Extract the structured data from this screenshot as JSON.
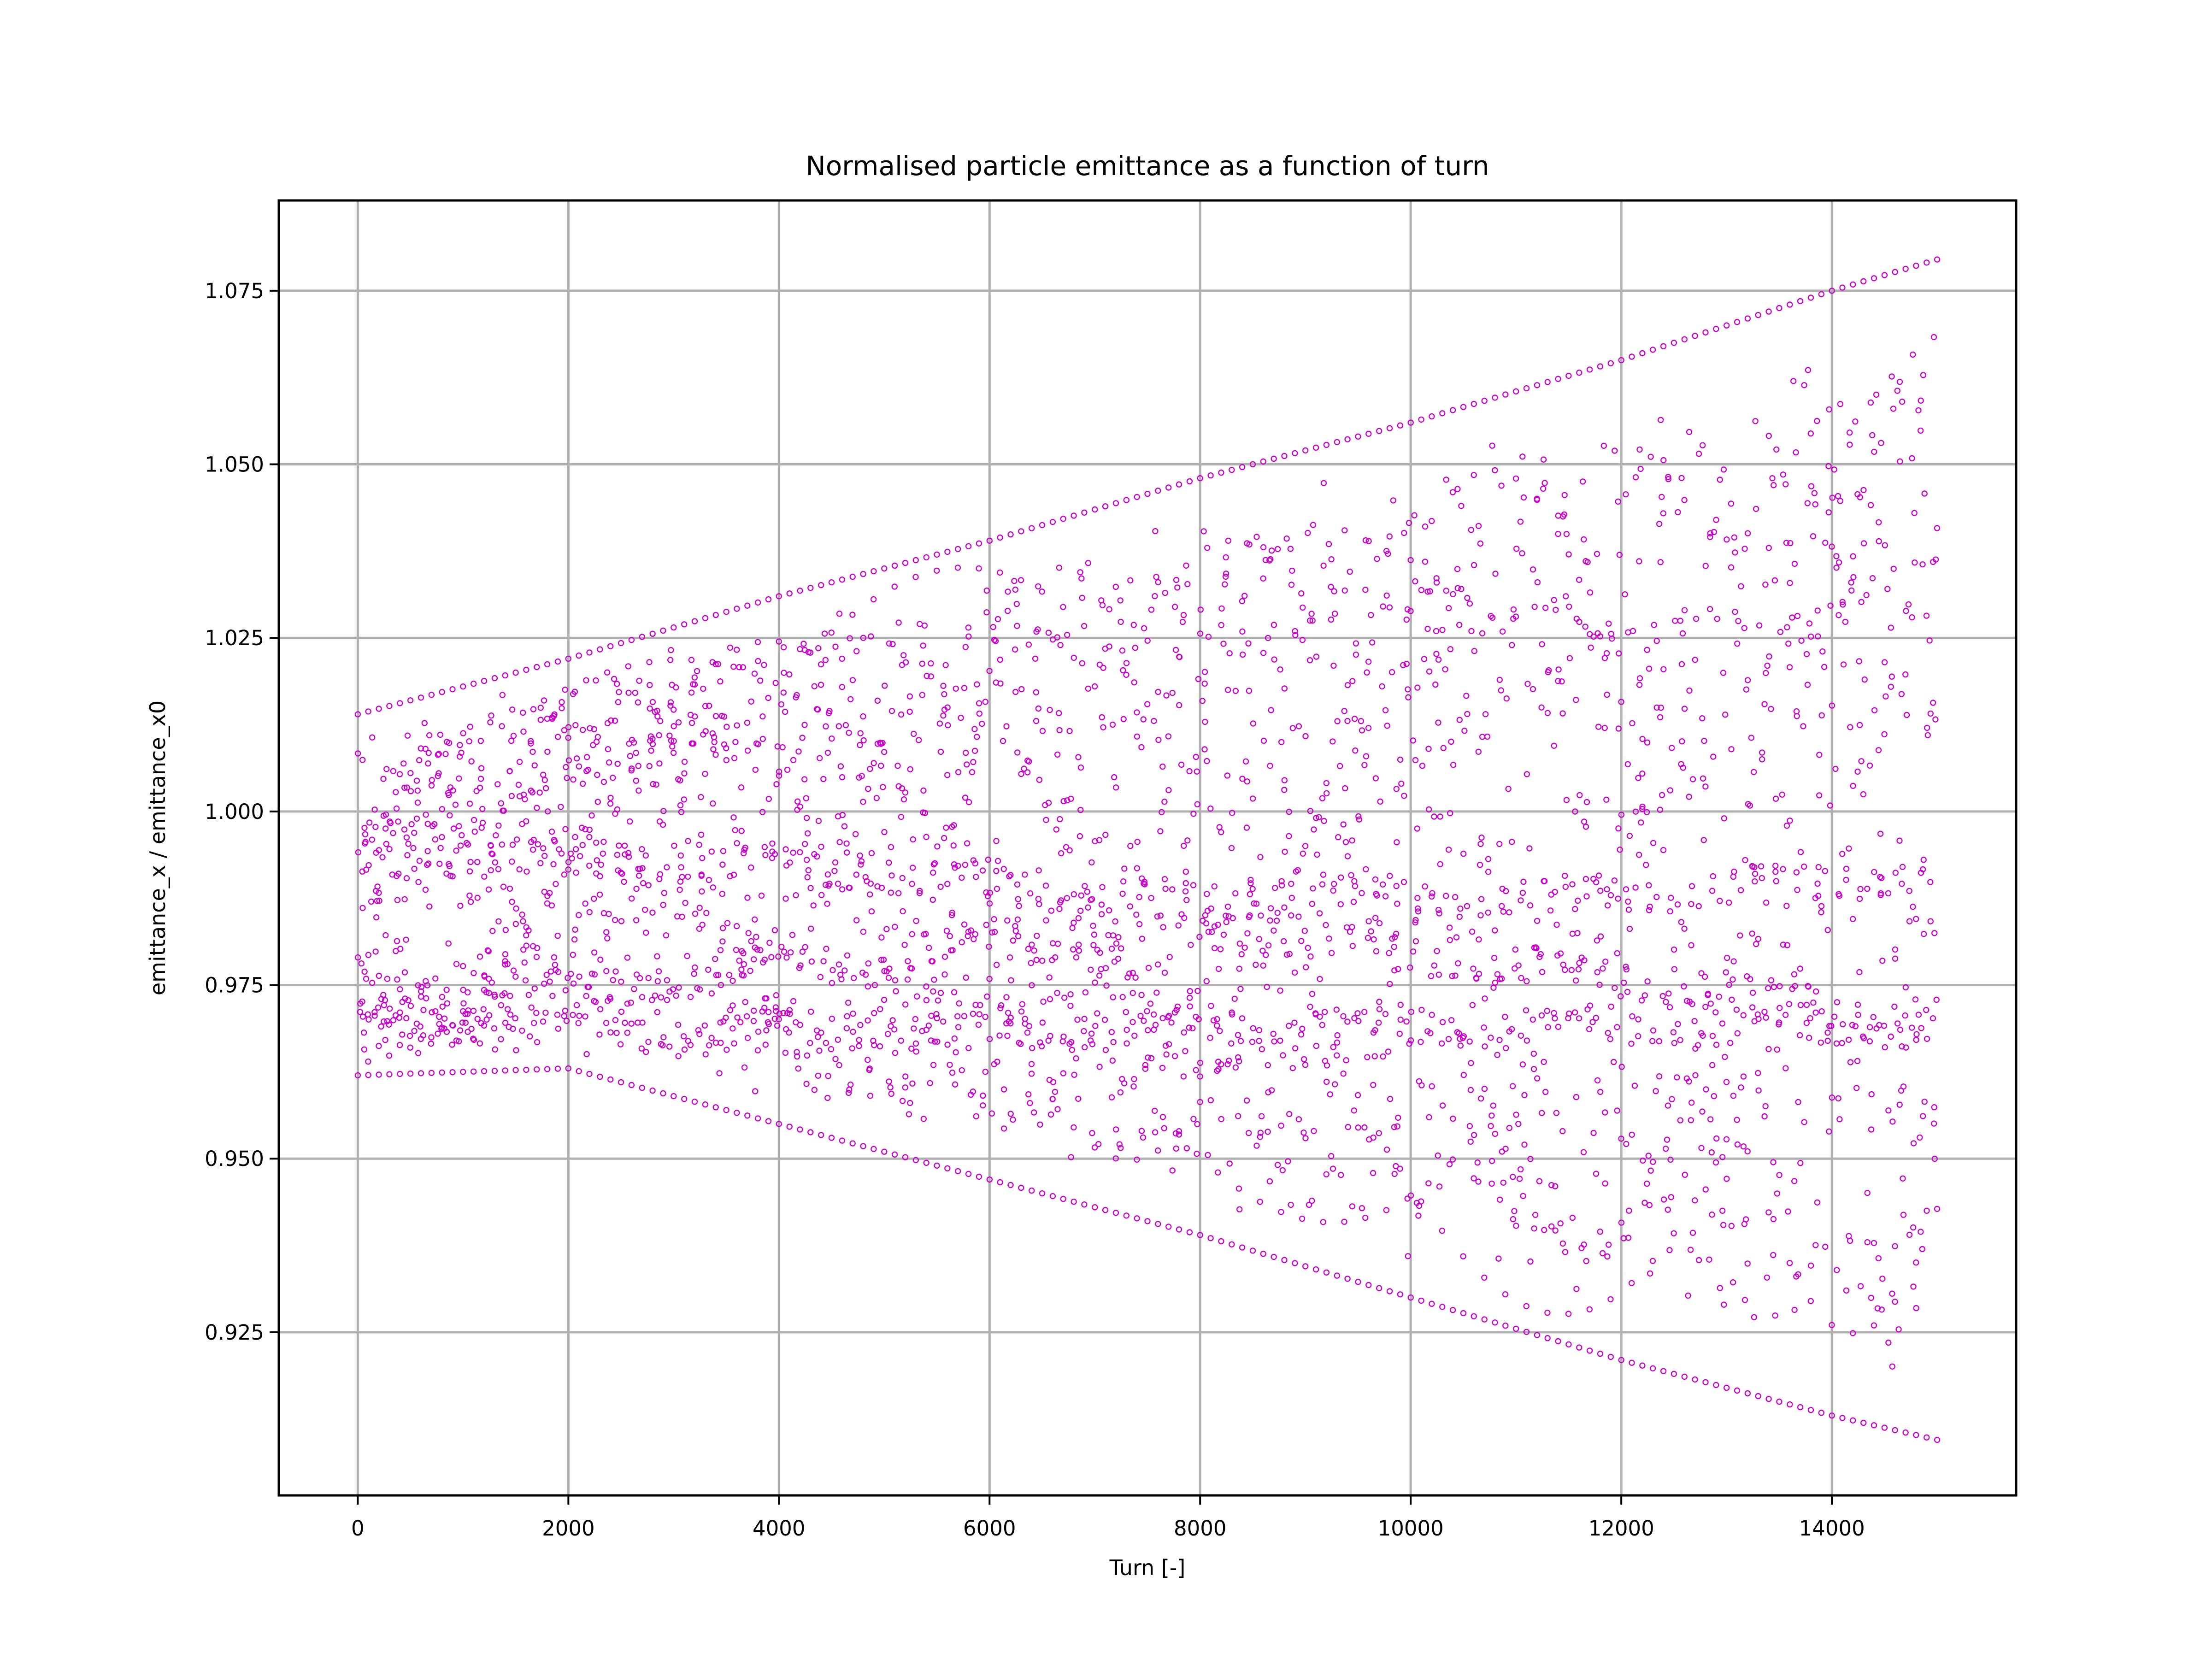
{
  "chart_data": {
    "type": "scatter",
    "title": "Normalised particle emittance as a function of turn",
    "xlabel": "Turn [-]",
    "ylabel": "emittance_x / emittance_x0",
    "xlim": [
      -750,
      15750
    ],
    "ylim": [
      0.9015,
      1.088
    ],
    "xticks": [
      0,
      2000,
      4000,
      6000,
      8000,
      10000,
      12000,
      14000
    ],
    "xtick_labels": [
      "0",
      "2000",
      "4000",
      "6000",
      "8000",
      "10000",
      "12000",
      "14000"
    ],
    "yticks": [
      0.925,
      0.95,
      0.975,
      1.0,
      1.025,
      1.05,
      1.075
    ],
    "ytick_labels": [
      "0.925",
      "0.950",
      "0.975",
      "1.000",
      "1.025",
      "1.050",
      "1.075"
    ],
    "grid": true,
    "marker": "hollow circle",
    "color": "#cc00cc",
    "x_range_data": [
      0,
      15000
    ],
    "envelope": {
      "x": [
        0,
        2000,
        4000,
        6000,
        8000,
        10000,
        12000,
        14000,
        15000
      ],
      "upper": [
        1.014,
        1.022,
        1.031,
        1.039,
        1.048,
        1.056,
        1.065,
        1.075,
        1.0795
      ],
      "lower": [
        0.962,
        0.963,
        0.955,
        0.947,
        0.939,
        0.93,
        0.921,
        0.913,
        0.9095
      ]
    },
    "concentration_bands": [
      {
        "x": [
          0,
          4000,
          8000,
          12000,
          15000
        ],
        "y": [
          0.995,
          0.992,
          0.987,
          0.988,
          0.991
        ]
      },
      {
        "x": [
          0,
          4000,
          8000,
          12000,
          15000
        ],
        "y": [
          0.97,
          0.978,
          0.983,
          0.976,
          0.97
        ]
      },
      {
        "x": [
          0,
          4000,
          8000,
          12000,
          15000
        ],
        "y": [
          0.969,
          0.968,
          0.969,
          0.969,
          0.969
        ]
      }
    ]
  }
}
